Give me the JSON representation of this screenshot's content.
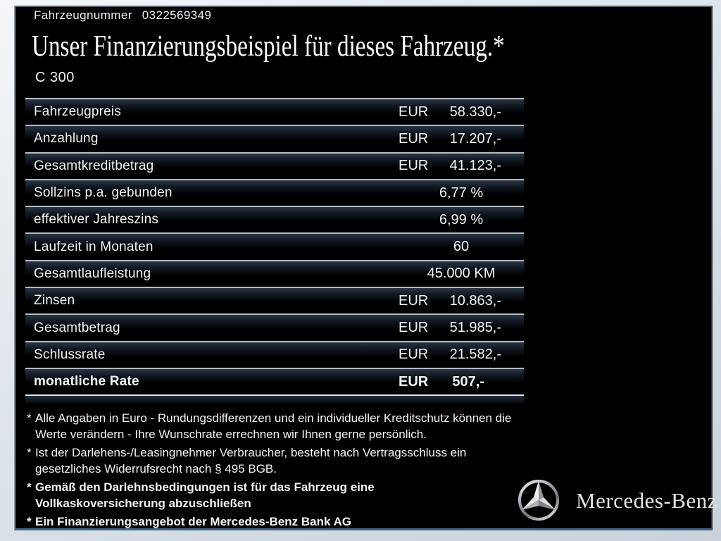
{
  "header": {
    "vin_label": "Fahrzeugnummer",
    "vin_value": "0322569349",
    "title": "Unser Finanzierungsbeispiel für dieses Fahrzeug.*",
    "model": "C 300"
  },
  "table": {
    "rows": [
      {
        "label": "Fahrzeugpreis",
        "currency": "EUR",
        "amount": "58.330,-"
      },
      {
        "label": "Anzahlung",
        "currency": "EUR",
        "amount": "17.207,-"
      },
      {
        "label": "Gesamtkreditbetrag",
        "currency": "EUR",
        "amount": "41.123,-"
      },
      {
        "label": "Sollzins p.a. gebunden",
        "value": "6,77 %"
      },
      {
        "label": "effektiver Jahreszins",
        "value": "6,99 %"
      },
      {
        "label": "Laufzeit in Monaten",
        "value": "60"
      },
      {
        "label": "Gesamtlaufleistung",
        "value": "45.000 KM"
      },
      {
        "label": "Zinsen",
        "currency": "EUR",
        "amount": "10.863,-"
      },
      {
        "label": "Gesamtbetrag",
        "currency": "EUR",
        "amount": "51.985,-"
      },
      {
        "label": "Schlussrate",
        "currency": "EUR",
        "amount": "21.582,-"
      },
      {
        "label": "monatliche Rate",
        "currency": "EUR",
        "amount": "507,-",
        "bold": true
      }
    ]
  },
  "footnotes": [
    {
      "marker": "*",
      "bold": false,
      "lines": [
        "Alle Angaben in Euro - Rundungsdifferenzen und ein individueller Kreditschutz können die",
        "Werte verändern - Ihre Wunschrate errechnen wir Ihnen gerne persönlich."
      ]
    },
    {
      "marker": "*",
      "bold": false,
      "lines": [
        "Ist der Darlehens-/Leasingnehmer Verbraucher, besteht nach Vertragsschluss ein",
        "gesetzliches Widerrufsrecht nach § 495 BGB."
      ]
    },
    {
      "marker": "*",
      "bold": true,
      "lines": [
        "Gemäß den Darlehnsbedingungen ist für das Fahrzeug eine",
        "Vollkaskoversicherung abzuschließen"
      ]
    },
    {
      "marker": "*",
      "bold": true,
      "lines": [
        "Ein Finanzierungsangebot der Mercedes-Benz Bank AG"
      ]
    }
  ],
  "brand": {
    "wordmark": "Mercedes-Benz",
    "logo_icon": "mercedes-star-icon"
  },
  "colors": {
    "background": "#000000",
    "frame": "#d7dee6",
    "row_line": "#b4bbc3",
    "row_gradient_top": "#2a3646",
    "bottom_border": "#44678c",
    "text": "#f5f5f5"
  }
}
